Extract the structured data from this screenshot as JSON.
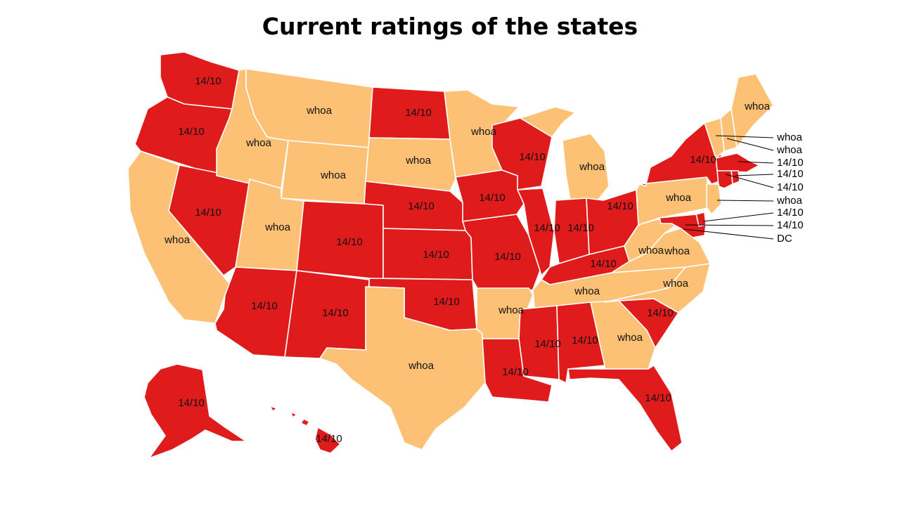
{
  "title": "Current ratings of the states",
  "colors": {
    "rating_14_10": "#e01b1b",
    "rating_whoa": "#fcc175",
    "border": "#ffffff"
  },
  "states": {
    "WA": "14/10",
    "OR": "14/10",
    "CA": "whoa",
    "NV": "14/10",
    "ID": "whoa",
    "MT": "whoa",
    "WY": "whoa",
    "UT": "whoa",
    "AZ": "14/10",
    "CO": "14/10",
    "NM": "14/10",
    "ND": "14/10",
    "SD": "whoa",
    "NE": "14/10",
    "KS": "14/10",
    "OK": "14/10",
    "TX": "whoa",
    "MN": "whoa",
    "IA": "14/10",
    "MO": "14/10",
    "AR": "whoa",
    "LA": "14/10",
    "WI": "14/10",
    "IL": "14/10",
    "MI": "whoa",
    "IN": "14/10",
    "OH": "14/10",
    "KY": "14/10",
    "TN": "whoa",
    "MS": "14/10",
    "AL": "14/10",
    "GA": "whoa",
    "FL": "14/10",
    "SC": "14/10",
    "NC": "whoa",
    "VA": "whoa",
    "WV": "whoa",
    "PA": "whoa",
    "NY": "14/10",
    "ME": "whoa",
    "AK": "14/10",
    "HI": "14/10"
  },
  "callouts": [
    {
      "state": "VT",
      "label": "whoa"
    },
    {
      "state": "NH",
      "label": "whoa"
    },
    {
      "state": "MA",
      "label": "14/10"
    },
    {
      "state": "RI",
      "label": "14/10"
    },
    {
      "state": "CT",
      "label": "14/10"
    },
    {
      "state": "NJ",
      "label": "whoa"
    },
    {
      "state": "DE",
      "label": "14/10"
    },
    {
      "state": "MD",
      "label": "14/10"
    },
    {
      "state": "DC",
      "label": "DC"
    }
  ]
}
